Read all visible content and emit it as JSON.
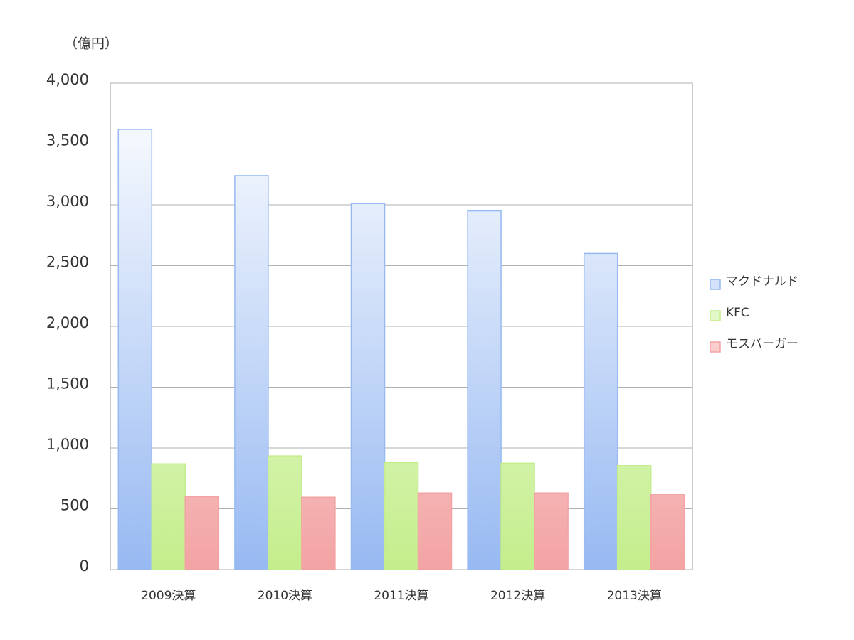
{
  "chart_data": {
    "type": "bar",
    "ylabel": "（億円）",
    "categories": [
      "2009決算",
      "2010決算",
      "2011決算",
      "2012決算",
      "2013決算"
    ],
    "series": [
      {
        "name": "マクドナルド",
        "color": "#97b9f2",
        "values": [
          3620,
          3240,
          3010,
          2950,
          2600
        ]
      },
      {
        "name": "KFC",
        "color": "#c4ee8c",
        "values": [
          870,
          935,
          880,
          875,
          855
        ]
      },
      {
        "name": "モスバーガー",
        "color": "#f3a3a3",
        "values": [
          600,
          595,
          630,
          630,
          620
        ]
      }
    ],
    "ylim": [
      0,
      4000
    ],
    "yticks": [
      0,
      500,
      {
        "value": 1000,
        "label": "1,000"
      },
      {
        "value": 1500,
        "label": "1,500"
      },
      {
        "value": 2000,
        "label": "2,000"
      },
      {
        "value": 2500,
        "label": "2,500"
      },
      {
        "value": 3000,
        "label": "3,000"
      },
      {
        "value": 3500,
        "label": "3,500"
      },
      {
        "value": 4000,
        "label": "4,000"
      }
    ],
    "grid": true,
    "legend": "right"
  }
}
